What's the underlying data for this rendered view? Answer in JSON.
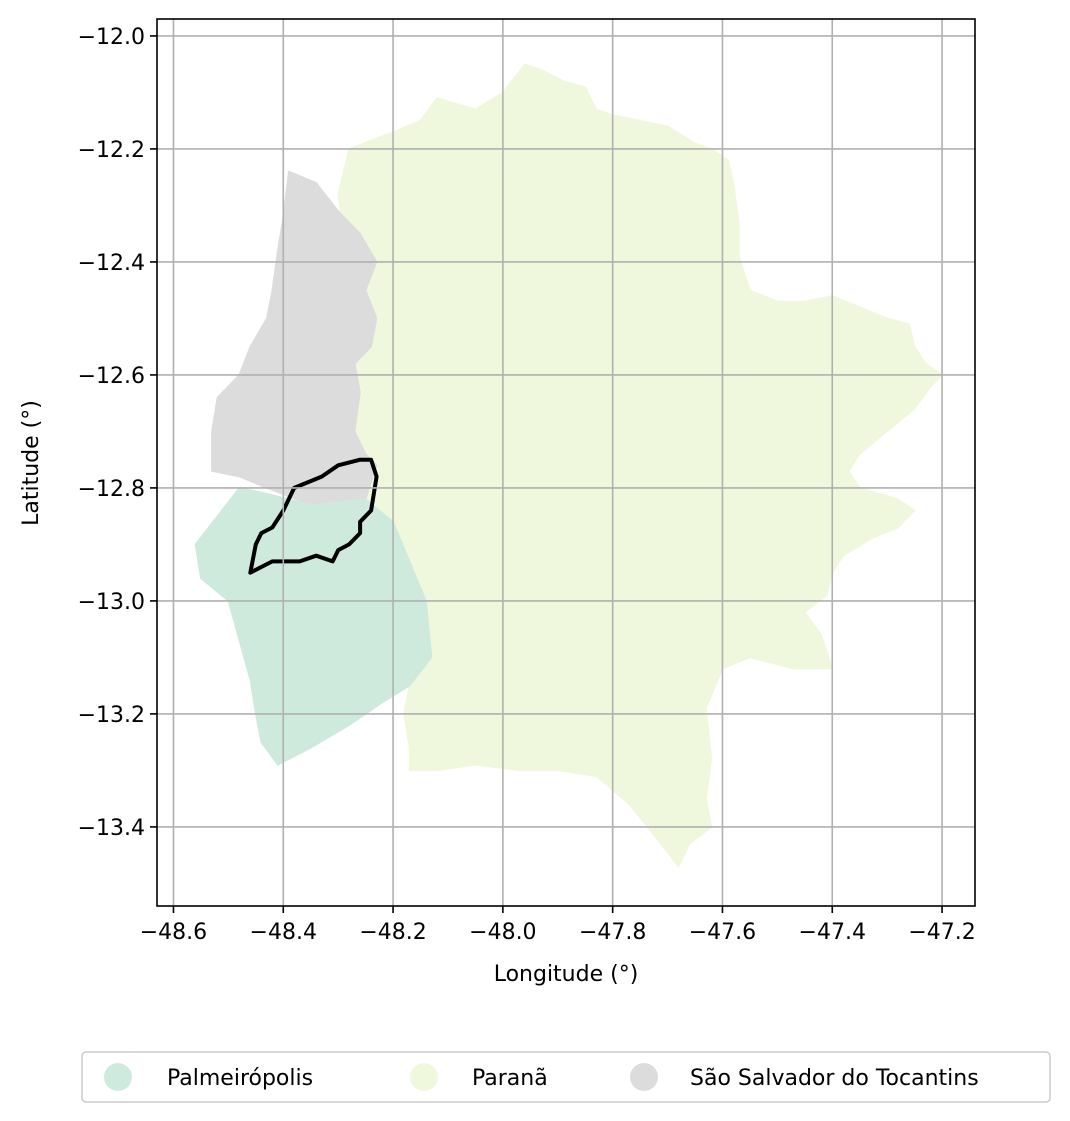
{
  "map": {
    "xlabel": "Longitude (°)",
    "ylabel": "Latitude (°)",
    "xlim": [
      -48.63,
      -47.14
    ],
    "ylim": [
      -13.54,
      -11.97
    ],
    "grid": true,
    "x_ticks": [
      -48.6,
      -48.4,
      -48.2,
      -48.0,
      -47.8,
      -47.6,
      -47.4,
      -47.2
    ],
    "x_tick_labels": [
      "−48.6",
      "−48.4",
      "−48.2",
      "−48.0",
      "−47.8",
      "−47.6",
      "−47.4",
      "−47.2"
    ],
    "y_ticks": [
      -12.0,
      -12.2,
      -12.4,
      -12.6,
      -12.8,
      -13.0,
      -13.2,
      -13.4
    ],
    "y_tick_labels": [
      "−12.0",
      "−12.2",
      "−12.4",
      "−12.6",
      "−12.8",
      "−13.0",
      "−13.2",
      "−13.4"
    ],
    "regions": [
      {
        "name": "Paranã",
        "color": "#eff8dc",
        "outline": [
          [
            -48.3,
            -12.28
          ],
          [
            -48.28,
            -12.2
          ],
          [
            -48.2,
            -12.17
          ],
          [
            -48.15,
            -12.15
          ],
          [
            -48.12,
            -12.11
          ],
          [
            -48.05,
            -12.13
          ],
          [
            -48.0,
            -12.1
          ],
          [
            -47.96,
            -12.05
          ],
          [
            -47.93,
            -12.06
          ],
          [
            -47.89,
            -12.08
          ],
          [
            -47.85,
            -12.09
          ],
          [
            -47.83,
            -12.13
          ],
          [
            -47.8,
            -12.14
          ],
          [
            -47.75,
            -12.15
          ],
          [
            -47.7,
            -12.16
          ],
          [
            -47.65,
            -12.19
          ],
          [
            -47.62,
            -12.2
          ],
          [
            -47.59,
            -12.22
          ],
          [
            -47.58,
            -12.26
          ],
          [
            -47.57,
            -12.33
          ],
          [
            -47.57,
            -12.39
          ],
          [
            -47.55,
            -12.45
          ],
          [
            -47.5,
            -12.47
          ],
          [
            -47.45,
            -12.47
          ],
          [
            -47.4,
            -12.46
          ],
          [
            -47.35,
            -12.48
          ],
          [
            -47.3,
            -12.5
          ],
          [
            -47.26,
            -12.51
          ],
          [
            -47.25,
            -12.55
          ],
          [
            -47.23,
            -12.58
          ],
          [
            -47.2,
            -12.6
          ],
          [
            -47.22,
            -12.62
          ],
          [
            -47.25,
            -12.66
          ],
          [
            -47.3,
            -12.7
          ],
          [
            -47.35,
            -12.74
          ],
          [
            -47.37,
            -12.77
          ],
          [
            -47.35,
            -12.8
          ],
          [
            -47.28,
            -12.82
          ],
          [
            -47.25,
            -12.84
          ],
          [
            -47.28,
            -12.87
          ],
          [
            -47.33,
            -12.89
          ],
          [
            -47.38,
            -12.92
          ],
          [
            -47.4,
            -12.95
          ],
          [
            -47.41,
            -12.99
          ],
          [
            -47.45,
            -13.02
          ],
          [
            -47.42,
            -13.06
          ],
          [
            -47.4,
            -13.12
          ],
          [
            -47.47,
            -13.12
          ],
          [
            -47.55,
            -13.1
          ],
          [
            -47.6,
            -13.12
          ],
          [
            -47.63,
            -13.19
          ],
          [
            -47.62,
            -13.28
          ],
          [
            -47.63,
            -13.35
          ],
          [
            -47.62,
            -13.4
          ],
          [
            -47.66,
            -13.43
          ],
          [
            -47.68,
            -13.47
          ],
          [
            -47.72,
            -13.42
          ],
          [
            -47.77,
            -13.36
          ],
          [
            -47.83,
            -13.31
          ],
          [
            -47.9,
            -13.3
          ],
          [
            -47.97,
            -13.3
          ],
          [
            -48.05,
            -13.29
          ],
          [
            -48.12,
            -13.3
          ],
          [
            -48.17,
            -13.3
          ],
          [
            -48.17,
            -13.26
          ],
          [
            -48.18,
            -13.2
          ],
          [
            -48.17,
            -13.15
          ],
          [
            -48.13,
            -13.1
          ],
          [
            -48.14,
            -13.0
          ],
          [
            -48.17,
            -12.93
          ],
          [
            -48.2,
            -12.86
          ],
          [
            -48.25,
            -12.82
          ],
          [
            -48.27,
            -12.8
          ],
          [
            -48.28,
            -12.75
          ],
          [
            -48.29,
            -12.7
          ],
          [
            -48.28,
            -12.63
          ],
          [
            -48.29,
            -12.58
          ],
          [
            -48.27,
            -12.5
          ],
          [
            -48.26,
            -12.42
          ],
          [
            -48.29,
            -12.35
          ]
        ]
      },
      {
        "name": "São Salvador do Tocantins",
        "color": "#dcdcdc",
        "outline": [
          [
            -48.39,
            -12.24
          ],
          [
            -48.34,
            -12.26
          ],
          [
            -48.3,
            -12.31
          ],
          [
            -48.26,
            -12.35
          ],
          [
            -48.23,
            -12.4
          ],
          [
            -48.25,
            -12.45
          ],
          [
            -48.23,
            -12.5
          ],
          [
            -48.24,
            -12.55
          ],
          [
            -48.27,
            -12.58
          ],
          [
            -48.26,
            -12.63
          ],
          [
            -48.27,
            -12.7
          ],
          [
            -48.25,
            -12.74
          ],
          [
            -48.23,
            -12.76
          ],
          [
            -48.25,
            -12.82
          ],
          [
            -48.35,
            -12.83
          ],
          [
            -48.43,
            -12.8
          ],
          [
            -48.48,
            -12.78
          ],
          [
            -48.53,
            -12.77
          ],
          [
            -48.53,
            -12.7
          ],
          [
            -48.52,
            -12.64
          ],
          [
            -48.48,
            -12.6
          ],
          [
            -48.46,
            -12.55
          ],
          [
            -48.43,
            -12.5
          ],
          [
            -48.42,
            -12.45
          ],
          [
            -48.41,
            -12.38
          ],
          [
            -48.4,
            -12.32
          ]
        ]
      },
      {
        "name": "Palmeirópolis",
        "color": "#ceeadc",
        "outline": [
          [
            -48.48,
            -12.8
          ],
          [
            -48.43,
            -12.81
          ],
          [
            -48.35,
            -12.83
          ],
          [
            -48.25,
            -12.82
          ],
          [
            -48.2,
            -12.86
          ],
          [
            -48.17,
            -12.93
          ],
          [
            -48.14,
            -13.0
          ],
          [
            -48.13,
            -13.1
          ],
          [
            -48.17,
            -13.15
          ],
          [
            -48.22,
            -13.18
          ],
          [
            -48.28,
            -13.22
          ],
          [
            -48.35,
            -13.26
          ],
          [
            -48.41,
            -13.29
          ],
          [
            -48.44,
            -13.25
          ],
          [
            -48.45,
            -13.2
          ],
          [
            -48.46,
            -13.14
          ],
          [
            -48.5,
            -13.0
          ],
          [
            -48.55,
            -12.96
          ],
          [
            -48.56,
            -12.9
          ],
          [
            -48.52,
            -12.85
          ]
        ]
      }
    ],
    "boundary": {
      "color": "#000000",
      "outline": [
        [
          -48.46,
          -12.95
        ],
        [
          -48.42,
          -12.93
        ],
        [
          -48.37,
          -12.93
        ],
        [
          -48.34,
          -12.92
        ],
        [
          -48.31,
          -12.93
        ],
        [
          -48.3,
          -12.91
        ],
        [
          -48.28,
          -12.9
        ],
        [
          -48.26,
          -12.88
        ],
        [
          -48.26,
          -12.86
        ],
        [
          -48.24,
          -12.84
        ],
        [
          -48.23,
          -12.78
        ],
        [
          -48.24,
          -12.75
        ],
        [
          -48.26,
          -12.75
        ],
        [
          -48.3,
          -12.76
        ],
        [
          -48.33,
          -12.78
        ],
        [
          -48.38,
          -12.8
        ],
        [
          -48.4,
          -12.84
        ],
        [
          -48.42,
          -12.87
        ],
        [
          -48.44,
          -12.88
        ],
        [
          -48.45,
          -12.9
        ]
      ]
    }
  },
  "legend": {
    "items": [
      {
        "label": "Palmeirópolis",
        "color": "#ceeadc"
      },
      {
        "label": "Paranã",
        "color": "#eff8dc"
      },
      {
        "label": "São Salvador do Tocantins",
        "color": "#dcdcdc"
      }
    ]
  }
}
